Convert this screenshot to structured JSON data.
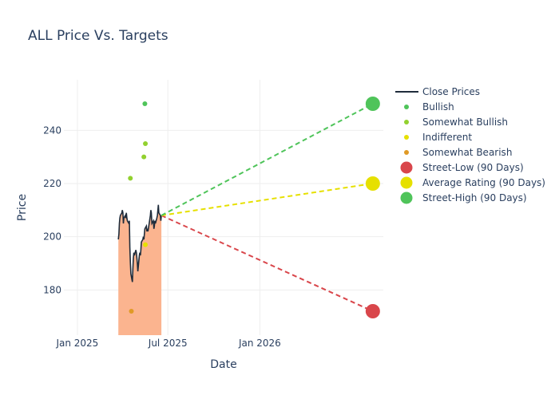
{
  "chart_data": {
    "type": "line",
    "title": "ALL Price Vs. Targets",
    "xlabel": "Date",
    "ylabel": "Price",
    "x_range": [
      "2024-12-05",
      "2026-09-05"
    ],
    "ylim": [
      163,
      259
    ],
    "grid": true,
    "legend_position": "right",
    "x_ticks": [
      {
        "date": "2025-01-01",
        "label": "Jan 2025"
      },
      {
        "date": "2025-07-01",
        "label": "Jul 2025"
      },
      {
        "date": "2026-01-01",
        "label": "Jan 2026"
      }
    ],
    "y_ticks": [
      180,
      200,
      220,
      240
    ],
    "close_prices": {
      "name": "Close Prices",
      "color": "#1f2c3b",
      "fill_color": "#fbb48f",
      "points": [
        [
          "2025-03-24",
          199
        ],
        [
          "2025-03-25",
          201
        ],
        [
          "2025-03-26",
          205
        ],
        [
          "2025-03-27",
          207
        ],
        [
          "2025-03-28",
          208
        ],
        [
          "2025-03-31",
          209
        ],
        [
          "2025-04-01",
          210
        ],
        [
          "2025-04-02",
          209
        ],
        [
          "2025-04-03",
          205
        ],
        [
          "2025-04-04",
          207
        ],
        [
          "2025-04-07",
          208
        ],
        [
          "2025-04-08",
          207
        ],
        [
          "2025-04-09",
          209
        ],
        [
          "2025-04-10",
          207
        ],
        [
          "2025-04-11",
          206
        ],
        [
          "2025-04-14",
          205
        ],
        [
          "2025-04-15",
          206
        ],
        [
          "2025-04-16",
          196
        ],
        [
          "2025-04-17",
          190
        ],
        [
          "2025-04-18",
          186
        ],
        [
          "2025-04-21",
          183
        ],
        [
          "2025-04-22",
          188
        ],
        [
          "2025-04-23",
          192
        ],
        [
          "2025-04-24",
          194
        ],
        [
          "2025-04-25",
          193
        ],
        [
          "2025-04-28",
          195
        ],
        [
          "2025-04-29",
          194
        ],
        [
          "2025-04-30",
          192
        ],
        [
          "2025-05-01",
          190
        ],
        [
          "2025-05-02",
          187
        ],
        [
          "2025-05-05",
          193
        ],
        [
          "2025-05-06",
          194
        ],
        [
          "2025-05-07",
          193
        ],
        [
          "2025-05-08",
          195
        ],
        [
          "2025-05-09",
          198
        ],
        [
          "2025-05-12",
          199
        ],
        [
          "2025-05-13",
          200
        ],
        [
          "2025-05-14",
          199
        ],
        [
          "2025-05-15",
          201
        ],
        [
          "2025-05-16",
          203
        ],
        [
          "2025-05-19",
          204
        ],
        [
          "2025-05-20",
          202
        ],
        [
          "2025-05-21",
          203
        ],
        [
          "2025-05-22",
          202
        ],
        [
          "2025-05-23",
          203
        ],
        [
          "2025-05-27",
          208
        ],
        [
          "2025-05-28",
          210
        ],
        [
          "2025-05-29",
          209
        ],
        [
          "2025-05-30",
          205
        ],
        [
          "2025-06-02",
          206
        ],
        [
          "2025-06-03",
          203
        ],
        [
          "2025-06-04",
          204
        ],
        [
          "2025-06-05",
          206
        ],
        [
          "2025-06-06",
          205
        ],
        [
          "2025-06-09",
          207
        ],
        [
          "2025-06-10",
          208
        ],
        [
          "2025-06-11",
          210
        ],
        [
          "2025-06-12",
          212
        ],
        [
          "2025-06-13",
          209
        ],
        [
          "2025-06-16",
          208
        ],
        [
          "2025-06-17",
          206
        ],
        [
          "2025-06-18",
          208
        ]
      ]
    },
    "ratings": [
      {
        "name": "Bullish",
        "color": "#4fc45a",
        "points": [
          [
            "2025-05-16",
            250
          ]
        ]
      },
      {
        "name": "Somewhat Bullish",
        "color": "#92d12f",
        "points": [
          [
            "2025-04-17",
            222
          ],
          [
            "2025-05-14",
            230
          ],
          [
            "2025-05-17",
            235
          ]
        ]
      },
      {
        "name": "Indifferent",
        "color": "#e6e000",
        "points": [
          [
            "2025-05-17",
            197
          ]
        ]
      },
      {
        "name": "Somewhat Bearish",
        "color": "#e09a26",
        "points": [
          [
            "2025-04-19",
            172
          ]
        ]
      }
    ],
    "targets": {
      "start": {
        "date": "2025-06-18",
        "value": 208
      },
      "end_date": "2026-08-15",
      "lines": [
        {
          "name": "Street-Low (90 Days)",
          "value": 172,
          "color": "#d9464b"
        },
        {
          "name": "Average Rating (90 Days)",
          "value": 220,
          "color": "#e6e000"
        },
        {
          "name": "Street-High (90 Days)",
          "value": 250,
          "color": "#4fc45a"
        }
      ]
    }
  }
}
